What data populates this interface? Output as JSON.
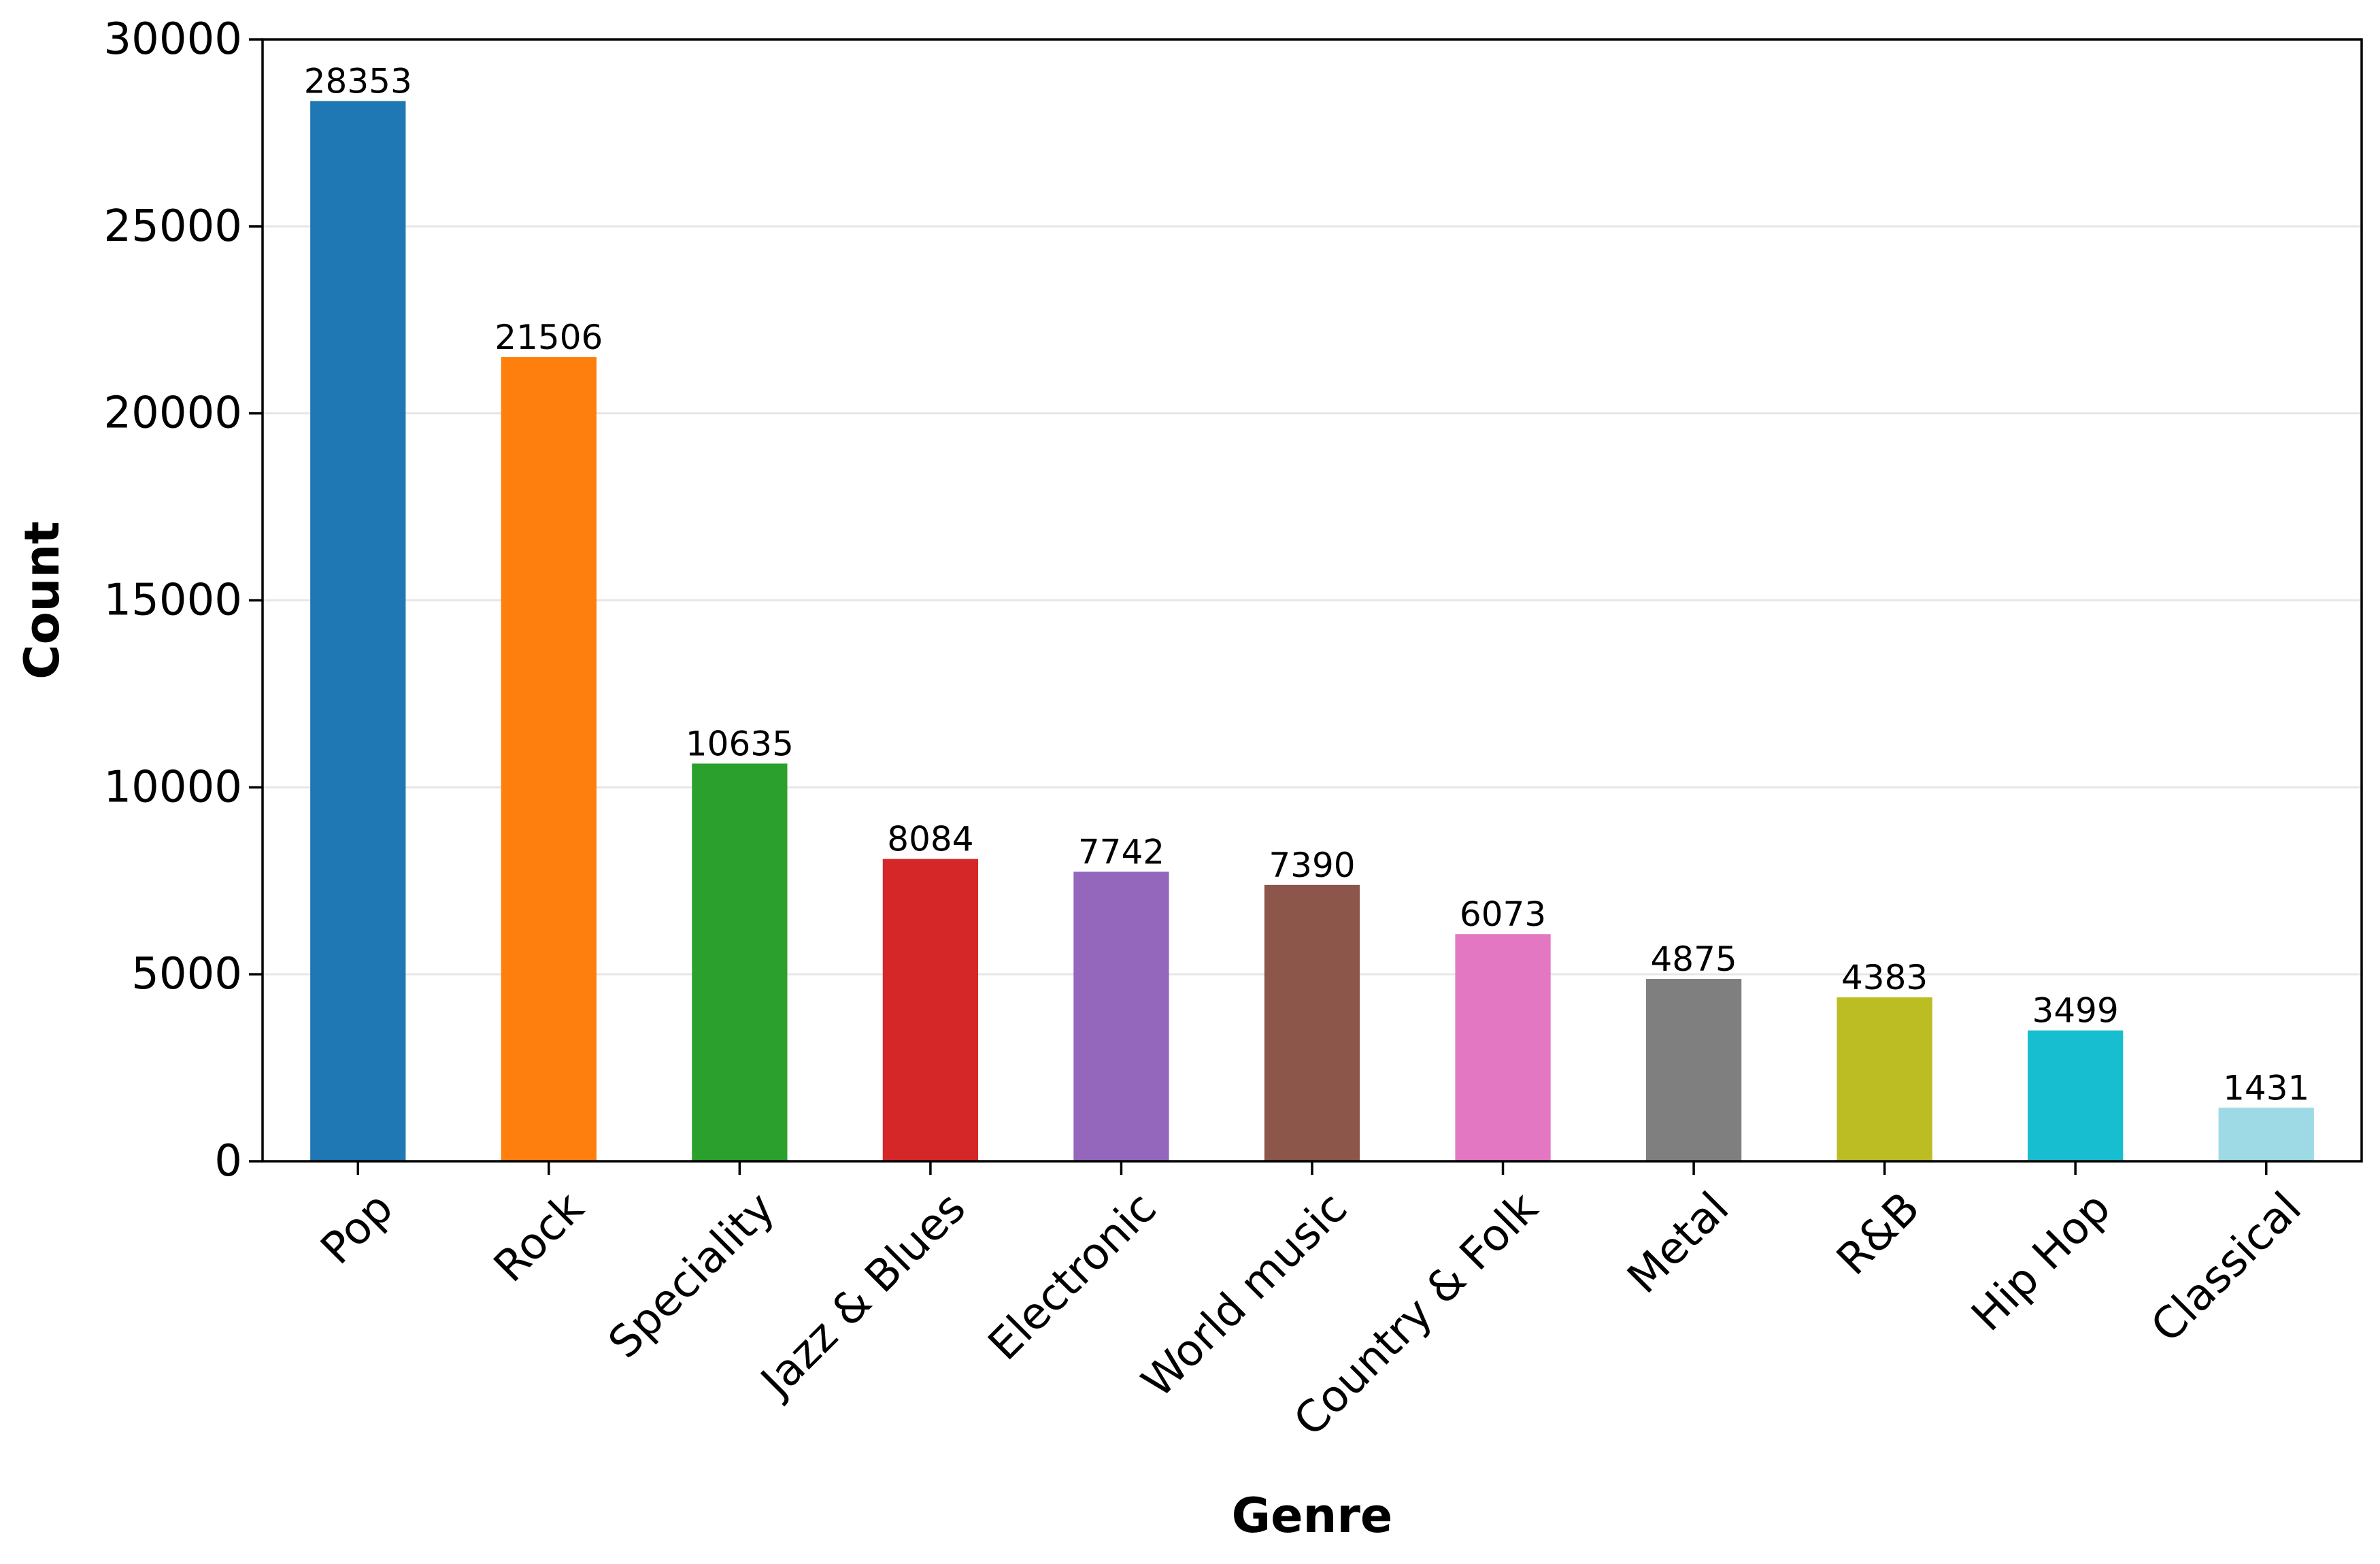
{
  "chart_data": {
    "type": "bar",
    "title": "",
    "xlabel": "Genre",
    "ylabel": "Count",
    "categories": [
      "Pop",
      "Rock",
      "Speciality",
      "Jazz & Blues",
      "Electronic",
      "World music",
      "Country & Folk",
      "Metal",
      "R&B",
      "Hip Hop",
      "Classical"
    ],
    "values": [
      28353,
      21506,
      10635,
      8084,
      7742,
      7390,
      6073,
      4875,
      4383,
      3499,
      1431
    ],
    "data_labels": [
      "28353",
      "21506",
      "10635",
      "8084",
      "7742",
      "7390",
      "6073",
      "4875",
      "4383",
      "3499",
      "1431"
    ],
    "colors": [
      "#1f77b4",
      "#ff7f0e",
      "#2ca02c",
      "#d62728",
      "#9467bd",
      "#8c564b",
      "#e377c2",
      "#7f7f7f",
      "#bcbd22",
      "#17becf",
      "#9edae5"
    ],
    "ylim": [
      0,
      30000
    ],
    "yticks": [
      0,
      5000,
      10000,
      15000,
      20000,
      25000,
      30000
    ],
    "ytick_labels": [
      "0",
      "5000",
      "10000",
      "15000",
      "20000",
      "25000",
      "30000"
    ],
    "grid": "y",
    "legend": "none"
  }
}
